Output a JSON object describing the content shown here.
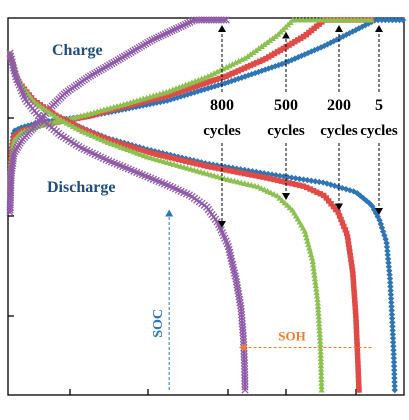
{
  "chart_data": {
    "type": "line",
    "title": "",
    "xlabel": "",
    "ylabel": "",
    "axes": {
      "x_domain": [
        0,
        100
      ],
      "y_domain": [
        0,
        100
      ],
      "grid": false,
      "tick_labels": false
    },
    "labels": {
      "charge": "Charge",
      "discharge": "Discharge",
      "soc": "SOC",
      "soh": "SOH"
    },
    "colors": {
      "5": "#2E75B6",
      "200": "#E04A47",
      "500": "#8CC152",
      "800": "#8E5BA8",
      "charge_text": "#1F4E79",
      "discharge_text": "#1F4E79",
      "soc_arrow": "#2E75B6",
      "soh_arrow": "#ED7D31",
      "cycle_text": "#000000"
    },
    "series": [
      {
        "cycles_number": "5",
        "cycles_word": "cycles",
        "marker": "diamond",
        "charge": [
          [
            0,
            56
          ],
          [
            0.3,
            65
          ],
          [
            1,
            70
          ],
          [
            3,
            71
          ],
          [
            8,
            72.4
          ],
          [
            14,
            73.2
          ],
          [
            20,
            74
          ],
          [
            25,
            75
          ],
          [
            40,
            78.2
          ],
          [
            55,
            83
          ],
          [
            70,
            88.4
          ],
          [
            80,
            93
          ],
          [
            88,
            97.3
          ],
          [
            93,
            100
          ],
          [
            100,
            100
          ]
        ],
        "discharge": [
          [
            0,
            90
          ],
          [
            2,
            83.5
          ],
          [
            6,
            78
          ],
          [
            12,
            74
          ],
          [
            18,
            71
          ],
          [
            25,
            68
          ],
          [
            35,
            65
          ],
          [
            50,
            61.2
          ],
          [
            65,
            58.5
          ],
          [
            80,
            56
          ],
          [
            88,
            53.5
          ],
          [
            92,
            50
          ],
          [
            94,
            46
          ],
          [
            95.8,
            40
          ],
          [
            96.7,
            30
          ],
          [
            97.3,
            18
          ],
          [
            97.7,
            8
          ],
          [
            97.9,
            0
          ]
        ]
      },
      {
        "cycles_number": "200",
        "cycles_word": "cycles",
        "marker": "square",
        "charge": [
          [
            0,
            54
          ],
          [
            0.3,
            63
          ],
          [
            1,
            68.5
          ],
          [
            3,
            70
          ],
          [
            8,
            71.6
          ],
          [
            14,
            72.8
          ],
          [
            20,
            74
          ],
          [
            25,
            75.5
          ],
          [
            40,
            79.5
          ],
          [
            55,
            84.8
          ],
          [
            65,
            89.5
          ],
          [
            75,
            95.7
          ],
          [
            80,
            100
          ],
          [
            92,
            100
          ]
        ],
        "discharge": [
          [
            0,
            90.5
          ],
          [
            2,
            83.5
          ],
          [
            6,
            78.3
          ],
          [
            12,
            74
          ],
          [
            18,
            70.7
          ],
          [
            25,
            67.6
          ],
          [
            35,
            64.3
          ],
          [
            50,
            60.5
          ],
          [
            65,
            57.4
          ],
          [
            75,
            55
          ],
          [
            80,
            52.5
          ],
          [
            83.5,
            48
          ],
          [
            85.8,
            42
          ],
          [
            87.2,
            32
          ],
          [
            88,
            20
          ],
          [
            88.5,
            8
          ],
          [
            88.8,
            0
          ]
        ]
      },
      {
        "cycles_number": "500",
        "cycles_word": "cycles",
        "marker": "triangle",
        "charge": [
          [
            0,
            52
          ],
          [
            0.3,
            62
          ],
          [
            1,
            67.5
          ],
          [
            3,
            69.7
          ],
          [
            8,
            71.6
          ],
          [
            14,
            73
          ],
          [
            20,
            74.6
          ],
          [
            30,
            77.5
          ],
          [
            40,
            80.6
          ],
          [
            50,
            84.6
          ],
          [
            60,
            89.8
          ],
          [
            68,
            95.9
          ],
          [
            72,
            100
          ],
          [
            92,
            100
          ]
        ],
        "discharge": [
          [
            0,
            91
          ],
          [
            2,
            83.8
          ],
          [
            6,
            78
          ],
          [
            12,
            73.6
          ],
          [
            18,
            70.1
          ],
          [
            25,
            66.9
          ],
          [
            35,
            63
          ],
          [
            45,
            60
          ],
          [
            55,
            57
          ],
          [
            63,
            55
          ],
          [
            68,
            52.5
          ],
          [
            72,
            48.5
          ],
          [
            75,
            43
          ],
          [
            77,
            35
          ],
          [
            78.3,
            24
          ],
          [
            79,
            12
          ],
          [
            79.3,
            0
          ]
        ]
      },
      {
        "cycles_number": "800",
        "cycles_word": "cycles",
        "marker": "x",
        "charge": [
          [
            0,
            48
          ],
          [
            0.3,
            58
          ],
          [
            1,
            64
          ],
          [
            3,
            67.5
          ],
          [
            7,
            72
          ],
          [
            10,
            76
          ],
          [
            14,
            80.2
          ],
          [
            20,
            84.6
          ],
          [
            28,
            89.5
          ],
          [
            36,
            94.5
          ],
          [
            42,
            97.5
          ],
          [
            47,
            100
          ],
          [
            55,
            100
          ]
        ],
        "discharge": [
          [
            0,
            91
          ],
          [
            1.5,
            84.5
          ],
          [
            4,
            78.3
          ],
          [
            8,
            73.2
          ],
          [
            13,
            68.8
          ],
          [
            18,
            65.5
          ],
          [
            25,
            62
          ],
          [
            33,
            58.5
          ],
          [
            40,
            55.4
          ],
          [
            46,
            52.5
          ],
          [
            50,
            49.5
          ],
          [
            53,
            45
          ],
          [
            55.5,
            39
          ],
          [
            57.5,
            30
          ],
          [
            58.8,
            22
          ],
          [
            59.4,
            14
          ],
          [
            59.7,
            6
          ],
          [
            59.8,
            0
          ]
        ]
      }
    ],
    "annotations": {
      "soh_arrow": {
        "from_x": 92,
        "to_x": 58,
        "y": 11.5
      },
      "soc_arrow": {
        "x": 40.5,
        "from_y": 0,
        "to_y": 48.5
      }
    }
  }
}
